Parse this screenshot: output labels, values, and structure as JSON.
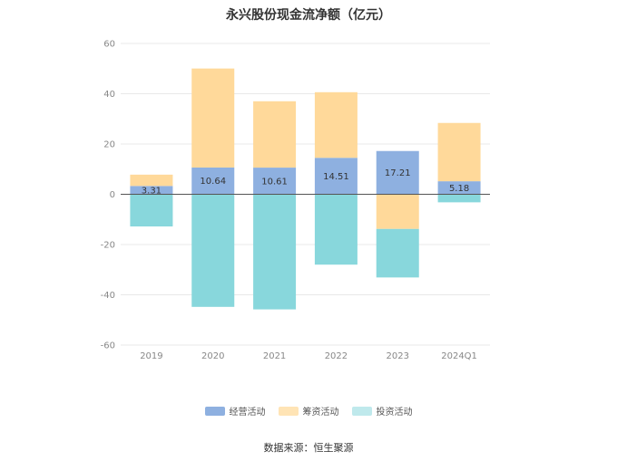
{
  "colors": {
    "operating": "#8eb0e0",
    "financing": "#ffd99a",
    "investing": "#88d7dc",
    "legend_investing": "#bfe9ec",
    "grid": "#e8e8e8",
    "axis_text": "#888888"
  },
  "source_text": "数据来源：恒生聚源",
  "chart_data": {
    "type": "bar",
    "stacked": true,
    "title": "永兴股份现金流净额（亿元）",
    "categories": [
      "2019",
      "2020",
      "2021",
      "2022",
      "2023",
      "2024Q1"
    ],
    "ylim": [
      -60,
      60
    ],
    "yticks": [
      60,
      40,
      20,
      0,
      -20,
      -40,
      -60
    ],
    "grid": true,
    "legend_position": "bottom",
    "series": [
      {
        "name": "经营活动",
        "key": "operating",
        "values": [
          3.31,
          10.64,
          10.61,
          14.51,
          17.21,
          5.18
        ]
      },
      {
        "name": "筹资活动",
        "key": "financing",
        "values": [
          4.5,
          39.4,
          26.4,
          26.1,
          -13.8,
          23.2
        ]
      },
      {
        "name": "投资活动",
        "key": "investing",
        "values": [
          -12.8,
          -44.8,
          -45.8,
          -28.0,
          -19.3,
          -3.2
        ]
      }
    ],
    "data_labels": [
      "3.31",
      "10.64",
      "10.61",
      "14.51",
      "17.21",
      "5.18"
    ]
  }
}
